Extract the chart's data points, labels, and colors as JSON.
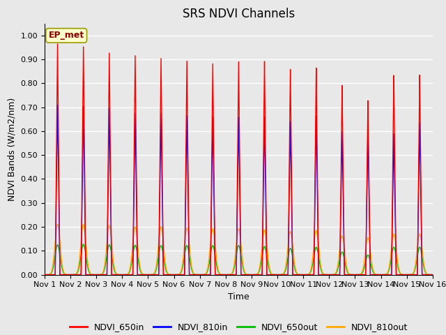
{
  "title": "SRS NDVI Channels",
  "ylabel": "NDVI Bands (W/m2/nm)",
  "xlabel": "Time",
  "annotation": "EP_met",
  "ylim": [
    0.0,
    1.05
  ],
  "n_days": 15,
  "x_tick_labels": [
    "Nov 1",
    "Nov 2",
    "Nov 3",
    "Nov 4",
    "Nov 5",
    "Nov 6",
    "Nov 7",
    "Nov 8",
    "Nov 9",
    "Nov 10",
    "Nov 11",
    "Nov 12",
    "Nov 13",
    "Nov 14",
    "Nov 15",
    "Nov 16"
  ],
  "colors": {
    "NDVI_650in": "#ff0000",
    "NDVI_810in": "#0000ff",
    "NDVI_650out": "#00bb00",
    "NDVI_810out": "#ffaa00"
  },
  "peak_650in": [
    0.965,
    0.955,
    0.93,
    0.92,
    0.91,
    0.9,
    0.89,
    0.9,
    0.9,
    0.865,
    0.87,
    0.795,
    0.73,
    0.835,
    0.835
  ],
  "peak_810in": [
    0.71,
    0.705,
    0.7,
    0.68,
    0.68,
    0.67,
    0.665,
    0.665,
    0.665,
    0.645,
    0.67,
    0.6,
    0.6,
    0.59,
    0.635
  ],
  "peak_650out": [
    0.125,
    0.127,
    0.125,
    0.123,
    0.122,
    0.122,
    0.122,
    0.122,
    0.118,
    0.11,
    0.115,
    0.095,
    0.082,
    0.115,
    0.115
  ],
  "peak_810out": [
    0.21,
    0.21,
    0.205,
    0.2,
    0.2,
    0.195,
    0.192,
    0.192,
    0.188,
    0.18,
    0.185,
    0.162,
    0.155,
    0.17,
    0.17
  ],
  "background_color": "#e8e8e8",
  "figure_facecolor": "#e8e8e8",
  "grid_color": "#ffffff",
  "title_fontsize": 12,
  "label_fontsize": 9,
  "tick_fontsize": 8
}
